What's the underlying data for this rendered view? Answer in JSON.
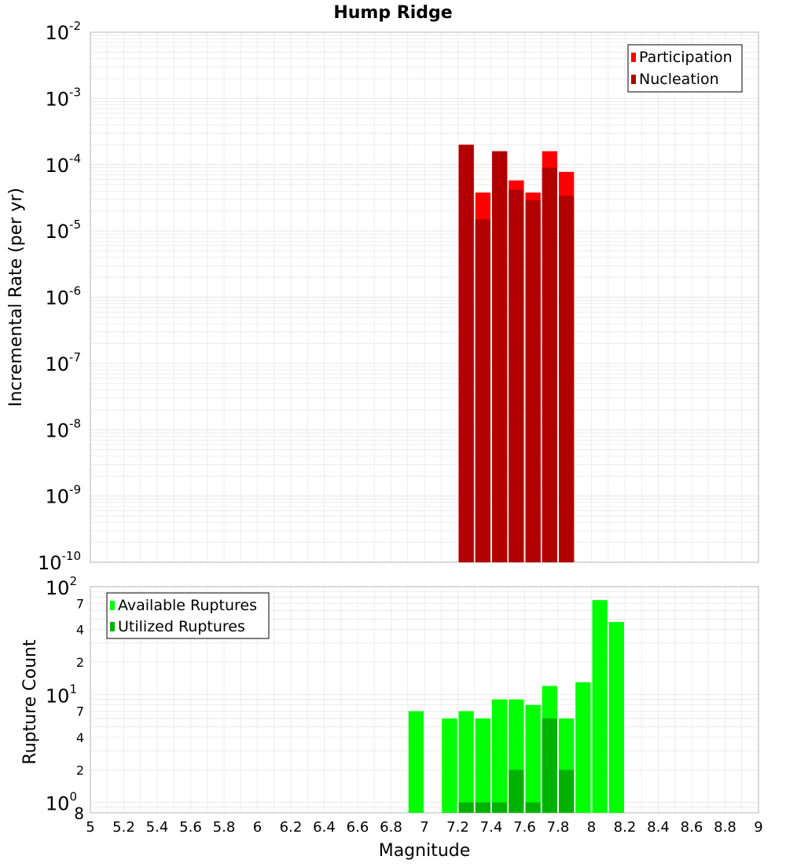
{
  "title": "Hump Ridge",
  "colors": {
    "participation": "#ff0000",
    "nucleation": "#b20000",
    "available": "#00ff00",
    "utilized": "#00b200",
    "grid": "#e6e6e6",
    "frame": "#b3b3b3"
  },
  "chart_data": [
    {
      "type": "bar",
      "name": "rate-chart",
      "title": "Hump Ridge",
      "xlabel": "Magnitude",
      "ylabel": "Incremental Rate (per yr)",
      "yscale": "log",
      "xlim": [
        5,
        9
      ],
      "ylim": [
        1e-10,
        0.01
      ],
      "bin_width": 0.1,
      "y_ticks": [
        {
          "base": "10",
          "exp": "-2"
        },
        {
          "base": "10",
          "exp": "-3"
        },
        {
          "base": "10",
          "exp": "-4"
        },
        {
          "base": "10",
          "exp": "-5"
        },
        {
          "base": "10",
          "exp": "-6"
        },
        {
          "base": "10",
          "exp": "-7"
        },
        {
          "base": "10",
          "exp": "-8"
        },
        {
          "base": "10",
          "exp": "-9"
        },
        {
          "base": "10",
          "exp": "-10"
        }
      ],
      "legend": {
        "position": "top-right",
        "entries": [
          "Participation",
          "Nucleation"
        ]
      },
      "series": [
        {
          "name": "Participation",
          "x": [
            7.25,
            7.35,
            7.45,
            7.55,
            7.65,
            7.75,
            7.85
          ],
          "values": [
            0.0002,
            3.8e-05,
            0.00016,
            5.8e-05,
            3.8e-05,
            0.00016,
            7.8e-05
          ]
        },
        {
          "name": "Nucleation",
          "x": [
            7.25,
            7.35,
            7.45,
            7.55,
            7.65,
            7.75,
            7.85
          ],
          "values": [
            0.0002,
            1.5e-05,
            0.00016,
            4.2e-05,
            2.9e-05,
            9e-05,
            3.4e-05
          ]
        }
      ]
    },
    {
      "type": "bar",
      "name": "count-chart",
      "xlabel": "Magnitude",
      "ylabel": "Rupture Count",
      "yscale": "log",
      "xlim": [
        5,
        9
      ],
      "ylim": [
        0.8,
        100
      ],
      "bin_width": 0.1,
      "x_ticks": [
        "5",
        "5.2",
        "5.4",
        "5.6",
        "5.8",
        "6",
        "6.2",
        "6.4",
        "6.6",
        "6.8",
        "7",
        "7.2",
        "7.4",
        "7.6",
        "7.8",
        "8",
        "8.2",
        "8.4",
        "8.6",
        "8.8",
        "9"
      ],
      "y_major_ticks": [
        {
          "value": 100,
          "base": "10",
          "exp": "2"
        },
        {
          "value": 10,
          "base": "10",
          "exp": "1"
        },
        {
          "value": 1,
          "base": "10",
          "exp": "0"
        }
      ],
      "y_minor_ticks": [
        {
          "value": 70,
          "label": "7"
        },
        {
          "value": 40,
          "label": "4"
        },
        {
          "value": 20,
          "label": "2"
        },
        {
          "value": 7,
          "label": "7"
        },
        {
          "value": 4,
          "label": "4"
        },
        {
          "value": 2,
          "label": "2"
        },
        {
          "value": 0.8,
          "label": "8"
        }
      ],
      "legend": {
        "position": "top-left",
        "entries": [
          "Available Ruptures",
          "Utilized Ruptures"
        ]
      },
      "series": [
        {
          "name": "Available Ruptures",
          "x": [
            6.95,
            7.15,
            7.25,
            7.35,
            7.45,
            7.55,
            7.65,
            7.75,
            7.85,
            7.95,
            8.05,
            8.15
          ],
          "values": [
            7,
            6,
            7,
            6,
            9,
            9,
            8,
            12,
            6,
            13,
            75,
            47
          ]
        },
        {
          "name": "Utilized Ruptures",
          "x": [
            7.25,
            7.35,
            7.45,
            7.55,
            7.65,
            7.75,
            7.85
          ],
          "values": [
            1,
            1,
            1,
            2,
            1,
            6,
            2
          ]
        }
      ]
    }
  ]
}
